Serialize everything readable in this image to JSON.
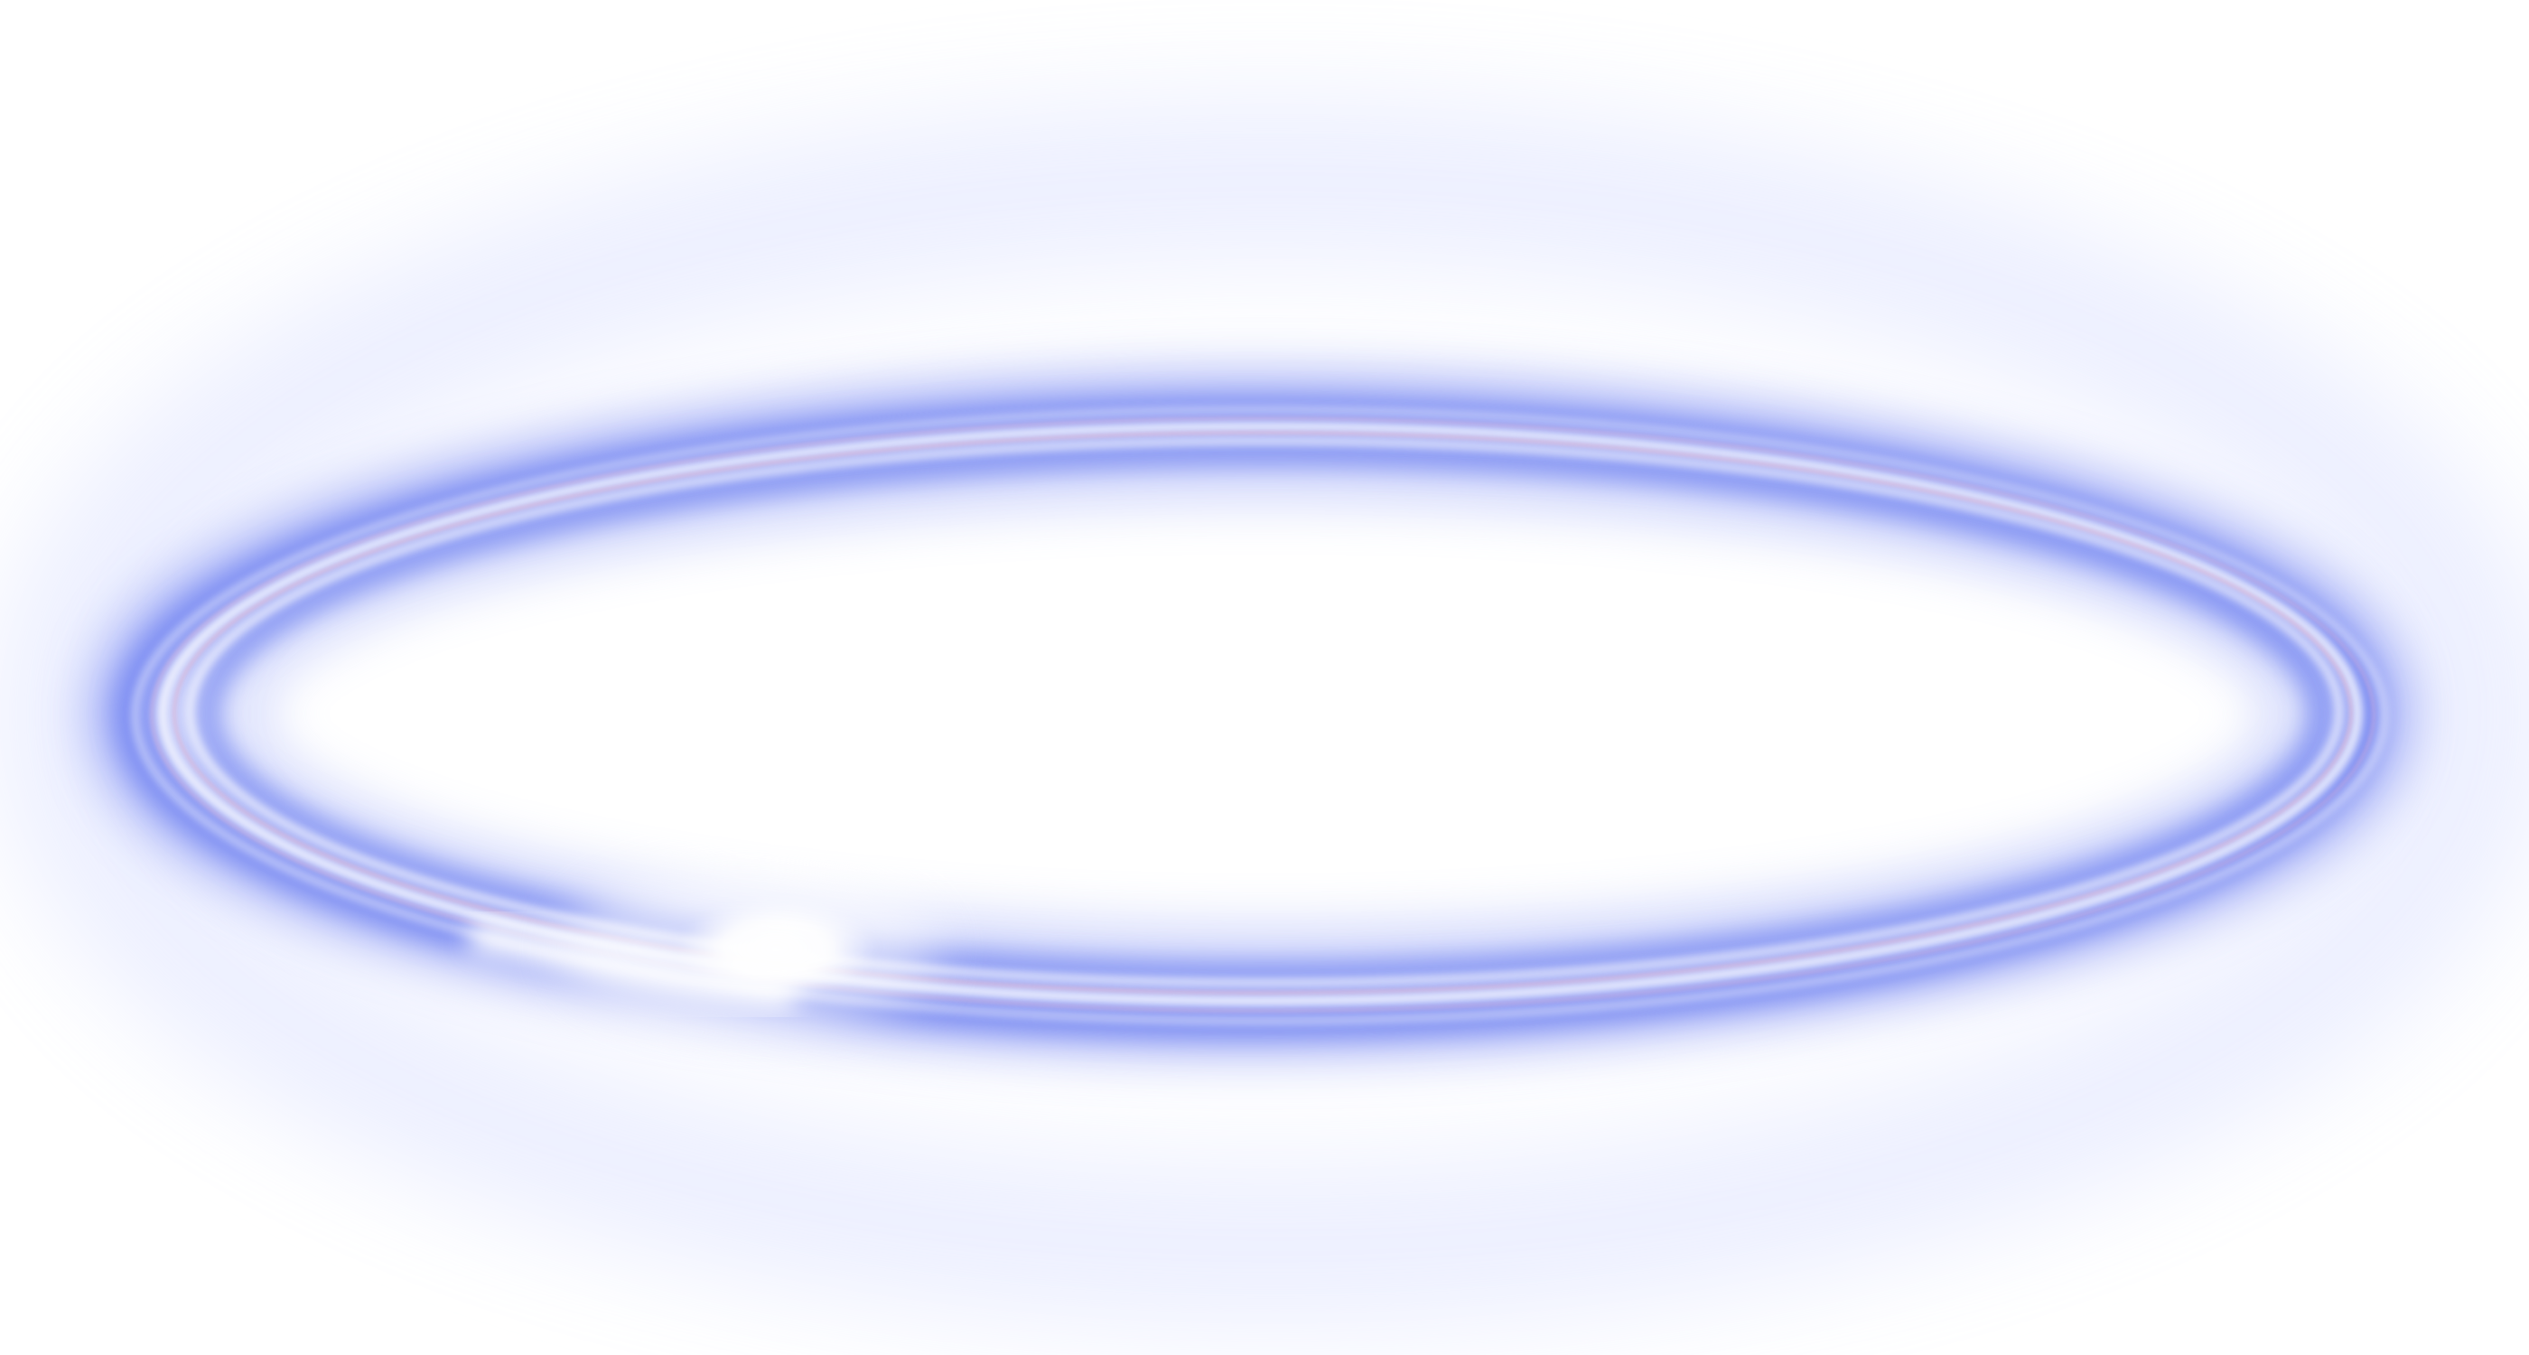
{
  "graphic": {
    "description_name": "glowing-ring",
    "colors": {
      "background": "#ffffff",
      "glow_outer": "#b9c4ff",
      "glow_mid": "#7f8ff2",
      "glow_core": "#5f73ee",
      "highlight": "#ffffff",
      "pink_tint": "#e8b8cf"
    }
  }
}
